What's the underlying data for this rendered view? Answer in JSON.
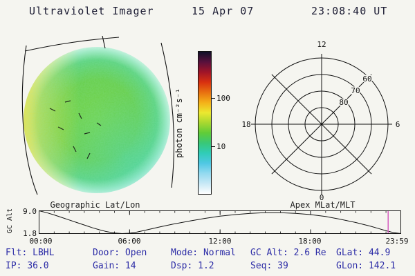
{
  "header": {
    "title": "Ultraviolet Imager",
    "date": "15 Apr 07",
    "time": "23:08:40 UT"
  },
  "panels": {
    "image": {
      "caption": "Geographic Lat/Lon"
    },
    "polar": {
      "caption": "Apex MLat/MLT"
    }
  },
  "colorbar": {
    "label": "photon cm⁻²s⁻¹",
    "tick_labels": [
      "100",
      "10"
    ]
  },
  "strip_chart": {
    "ylabel": "GC Alt",
    "ytick_labels": [
      "9.0",
      "1.8"
    ],
    "xtick_labels": [
      "00:00",
      "06:00",
      "12:00",
      "18:00",
      "23:59"
    ]
  },
  "status": {
    "row1": [
      {
        "label": "Flt:",
        "value": "LBHL"
      },
      {
        "label": "Door:",
        "value": "Open"
      },
      {
        "label": "Mode:",
        "value": "Normal"
      },
      {
        "label": "GC Alt:",
        "value": "2.6 Re"
      },
      {
        "label": "GLat:",
        "value": "44.9"
      }
    ],
    "row2": [
      {
        "label": "IP:",
        "value": "36.0"
      },
      {
        "label": "Gain:",
        "value": "14"
      },
      {
        "label": "Dsp:",
        "value": "1.2"
      },
      {
        "label": "Seq:",
        "value": "39"
      },
      {
        "label": "GLon:",
        "value": "142.1"
      }
    ]
  },
  "colors": {
    "header_text": "#1c1c33",
    "status_text": "#2b2ba6",
    "cursor": "#d75fc0",
    "axis": "#111111",
    "disk_green": "#6fd148",
    "disk_yellow": "#e6e448",
    "disk_cyan": "#46d6be"
  },
  "chart_data": [
    {
      "type": "heatmap",
      "title": "Ultraviolet Imager disk image (UV photon flux)",
      "caption": "Geographic Lat/Lon",
      "colorbar": {
        "label": "photon cm⁻²s⁻¹",
        "scale": "log",
        "range": [
          1,
          1000
        ],
        "ticks": [
          100,
          10
        ],
        "palette_top_to_bottom": [
          "#101028",
          "#58103c",
          "#a01428",
          "#d83010",
          "#e87010",
          "#f4b018",
          "#ece830",
          "#a8d830",
          "#60cc38",
          "#38c878",
          "#30ccb8",
          "#50c8e4",
          "#94daf0",
          "#c9e9f6",
          "#ffffff"
        ]
      }
    },
    {
      "type": "line",
      "title": "Spacecraft geocentric altitude vs UT",
      "ylabel": "GC Alt",
      "ylim": [
        1.8,
        9.0
      ],
      "yticks": [
        9.0,
        1.8
      ],
      "xlim": [
        0,
        23.983
      ],
      "xtick_hours": [
        0,
        6,
        12,
        18,
        23.983
      ],
      "xtick_labels": [
        "00:00",
        "06:00",
        "12:00",
        "18:00",
        "23:59"
      ],
      "cursor_hour": 23.144,
      "x": [
        0,
        0.5,
        1,
        1.5,
        2,
        2.5,
        3,
        3.5,
        4,
        4.5,
        5,
        5.5,
        6,
        6.5,
        7,
        8,
        9,
        10,
        11,
        12,
        13,
        14,
        15,
        16,
        17,
        18,
        19,
        20,
        21,
        22,
        22.5,
        23,
        23.5,
        23.98
      ],
      "y": [
        9.0,
        8.4,
        7.7,
        6.9,
        6.1,
        5.3,
        4.5,
        3.7,
        3.0,
        2.4,
        2.0,
        1.8,
        1.9,
        2.3,
        2.8,
        3.9,
        4.9,
        5.8,
        6.6,
        7.3,
        7.8,
        8.2,
        8.4,
        8.4,
        8.2,
        7.8,
        7.2,
        6.3,
        5.3,
        4.1,
        3.4,
        2.7,
        2.1,
        1.8
      ]
    },
    {
      "type": "scatter",
      "title": "Apex MLat/MLT polar dial (no data points plotted)",
      "caption": "Apex MLat/MLT",
      "rings_mlat": [
        80,
        70,
        60,
        50
      ],
      "ring_labels": [
        "60",
        "70",
        "80"
      ],
      "clock_labels": {
        "top": "12",
        "left": "18",
        "right": "6",
        "bottom": "0"
      },
      "points": []
    }
  ]
}
